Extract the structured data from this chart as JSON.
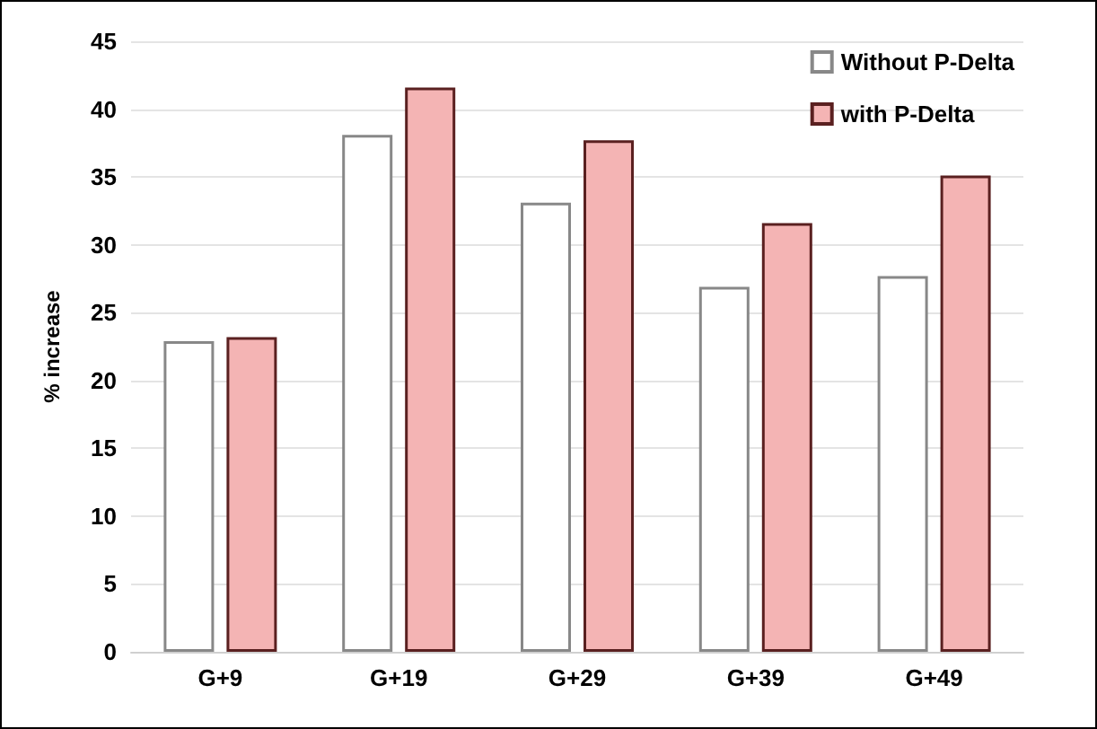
{
  "chart_data": {
    "type": "bar",
    "ylabel": "% increase",
    "categories": [
      "G+9",
      "G+19",
      "G+29",
      "G+39",
      "G+49"
    ],
    "series": [
      {
        "name": "Without P-Delta",
        "color": "#ffffff",
        "values": [
          22.9,
          38.1,
          33.1,
          26.9,
          27.7
        ]
      },
      {
        "name": "with P-Delta",
        "color": "#f4b4b4",
        "values": [
          23.2,
          41.6,
          37.7,
          31.6,
          35.1
        ]
      }
    ],
    "ylim": [
      0,
      45
    ],
    "yticks": [
      0,
      5,
      10,
      15,
      20,
      25,
      30,
      35,
      40,
      45
    ],
    "grid": "y",
    "legend": "top right"
  }
}
